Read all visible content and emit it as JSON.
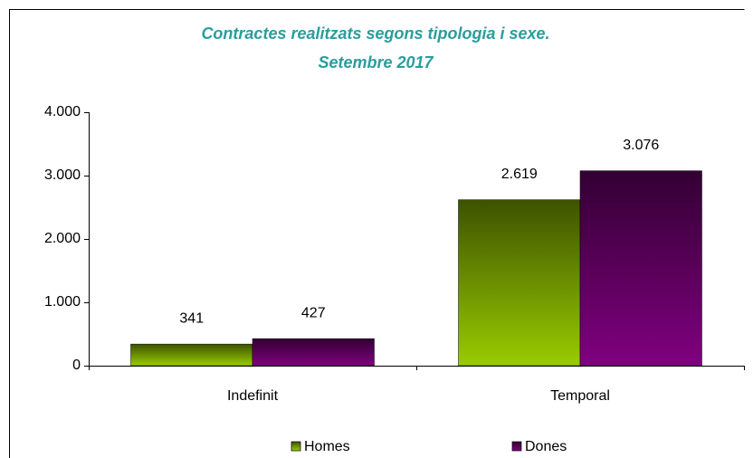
{
  "chart_data": {
    "type": "bar",
    "title": "Contractes realitzats segons tipologia i sexe.",
    "subtitle": "Setembre 2017",
    "categories": [
      "Indefinit",
      "Temporal"
    ],
    "series": [
      {
        "name": "Homes",
        "color": "#99cc00",
        "values": [
          341,
          2619
        ],
        "value_labels": [
          "341",
          "2.619"
        ]
      },
      {
        "name": "Dones",
        "color": "#800080",
        "values": [
          427,
          3076
        ],
        "value_labels": [
          "427",
          "3.076"
        ]
      }
    ],
    "ylim": [
      0,
      4000
    ],
    "yticks": [
      0,
      {
        "value": 1000,
        "label": "1.000"
      },
      {
        "value": 2000,
        "label": "2.000"
      },
      {
        "value": 3000,
        "label": "3.000"
      },
      {
        "value": 4000,
        "label": "4.000"
      }
    ],
    "grid": false,
    "legend": "bottom"
  }
}
